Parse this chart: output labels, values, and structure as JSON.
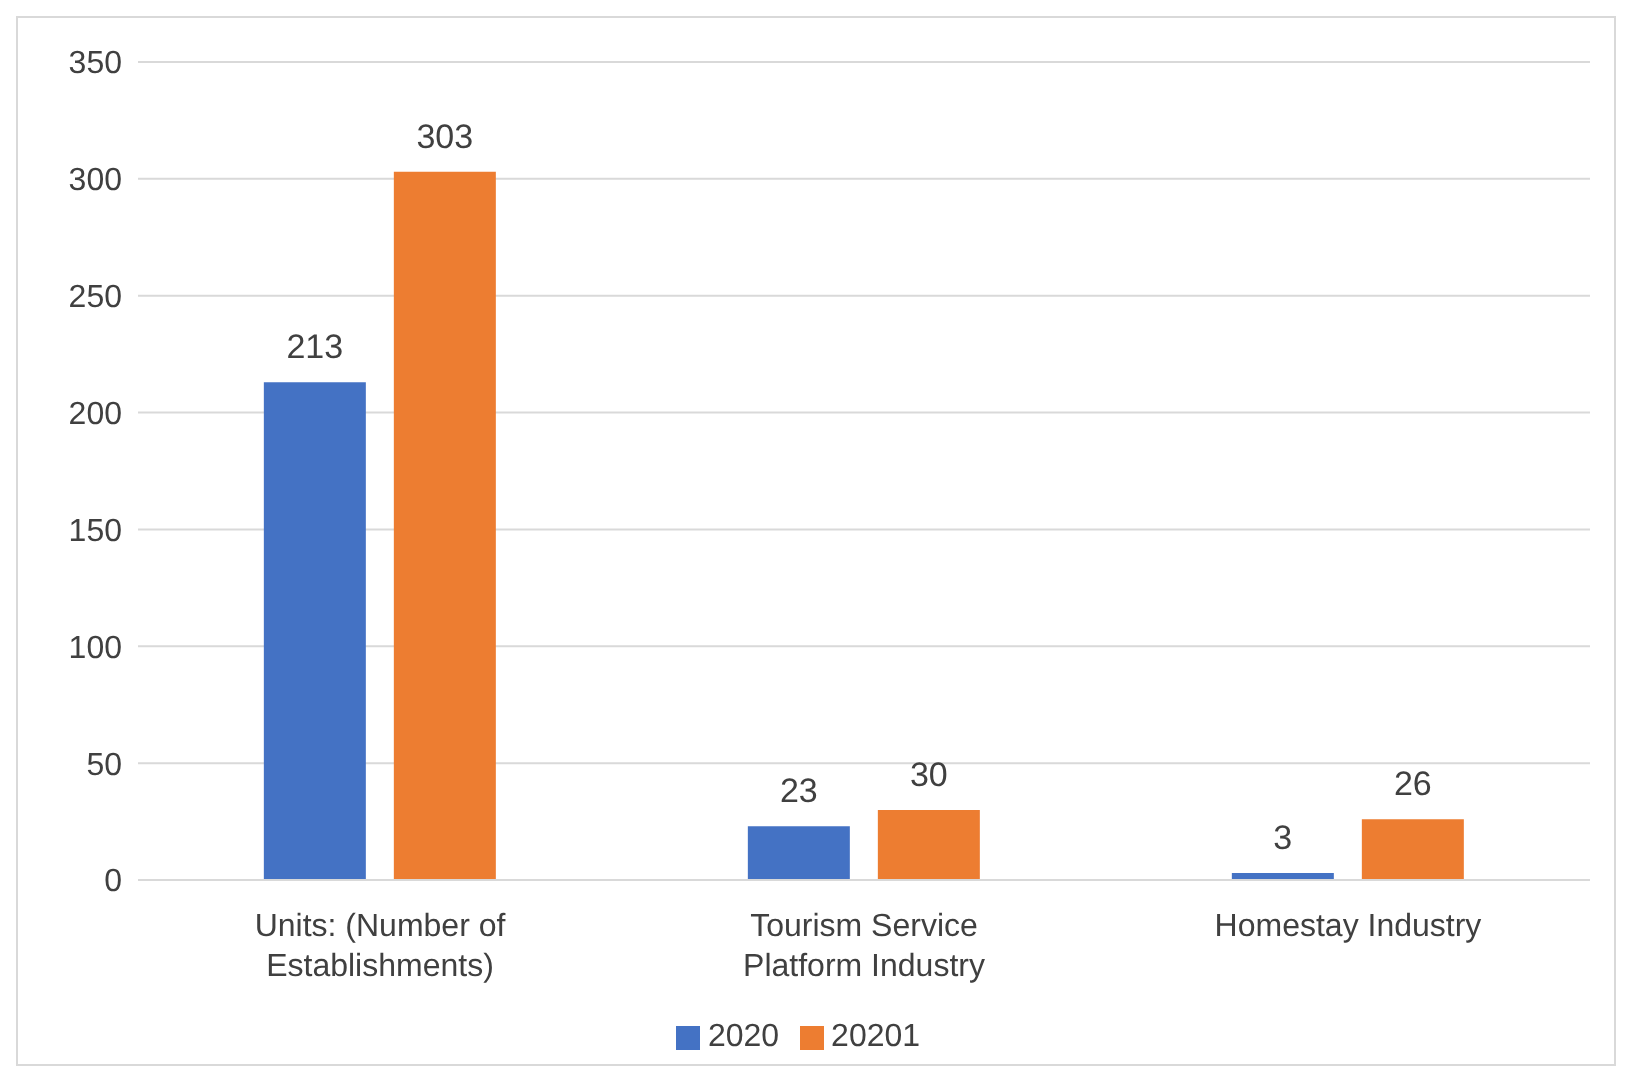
{
  "chart_data": {
    "type": "bar",
    "categories": [
      "Units: (Number of Establishments)",
      "Tourism Service Platform Industry",
      "Homestay Industry"
    ],
    "series": [
      {
        "name": "2020",
        "color": "#4472c4",
        "values": [
          213,
          23,
          3
        ]
      },
      {
        "name": "20201",
        "color": "#ed7d31",
        "values": [
          303,
          30,
          26
        ]
      }
    ],
    "ylim": [
      0,
      350
    ],
    "yticks": [
      0,
      50,
      100,
      150,
      200,
      250,
      300,
      350
    ],
    "grid": "y",
    "legend": "bottom",
    "data_labels": true
  }
}
